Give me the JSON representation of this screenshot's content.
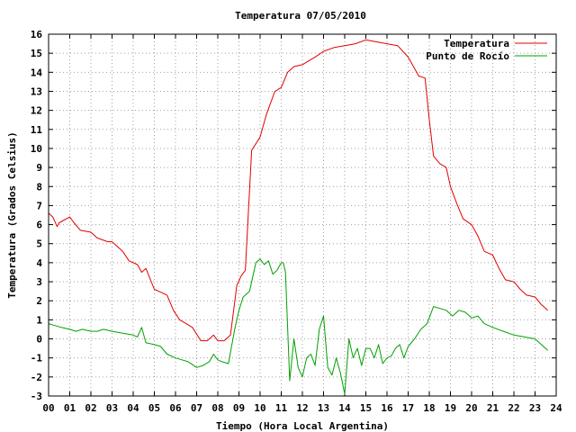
{
  "chart_data": {
    "type": "line",
    "title": "Temperatura 07/05/2010",
    "xlabel": "Tiempo (Hora Local Argentina)",
    "ylabel": "Temperatura (Grados Celsius)",
    "xlim": [
      0,
      24
    ],
    "ylim": [
      -3,
      16
    ],
    "xticks": [
      0,
      1,
      2,
      3,
      4,
      5,
      6,
      7,
      8,
      9,
      10,
      11,
      12,
      13,
      14,
      15,
      16,
      17,
      18,
      19,
      20,
      21,
      22,
      23,
      24
    ],
    "xtick_labels": [
      "00",
      "01",
      "02",
      "03",
      "04",
      "05",
      "06",
      "07",
      "08",
      "09",
      "10",
      "11",
      "12",
      "13",
      "14",
      "15",
      "16",
      "17",
      "18",
      "19",
      "20",
      "21",
      "22",
      "23",
      "24"
    ],
    "yticks": [
      -3,
      -2,
      -1,
      0,
      1,
      2,
      3,
      4,
      5,
      6,
      7,
      8,
      9,
      10,
      11,
      12,
      13,
      14,
      15,
      16
    ],
    "ytick_labels": [
      "-3",
      "-2",
      "-1",
      "0",
      "1",
      "2",
      "3",
      "4",
      "5",
      "6",
      "7",
      "8",
      "9",
      "10",
      "11",
      "12",
      "13",
      "14",
      "15",
      "16"
    ],
    "grid": true,
    "legend_position": "top-right",
    "series": [
      {
        "name": "Temperatura",
        "color": "#e00000",
        "x": [
          0.0,
          0.2,
          0.4,
          0.5,
          1.0,
          1.2,
          1.5,
          2.0,
          2.3,
          2.8,
          3.0,
          3.5,
          3.8,
          4.2,
          4.4,
          4.6,
          5.0,
          5.2,
          5.6,
          5.9,
          6.2,
          6.5,
          6.8,
          7.2,
          7.5,
          7.8,
          8.0,
          8.3,
          8.6,
          8.9,
          9.1,
          9.3,
          9.6,
          10.0,
          10.3,
          10.7,
          11.0,
          11.3,
          11.6,
          12.0,
          12.3,
          12.6,
          13.0,
          13.5,
          14.0,
          14.5,
          15.0,
          15.5,
          16.0,
          16.5,
          17.0,
          17.5,
          17.8,
          18.0,
          18.2,
          18.5,
          18.8,
          19.0,
          19.3,
          19.6,
          20.0,
          20.3,
          20.6,
          21.0,
          21.3,
          21.6,
          22.0,
          22.3,
          22.6,
          23.0,
          23.3,
          23.6
        ],
        "y": [
          6.6,
          6.4,
          5.9,
          6.1,
          6.4,
          6.1,
          5.7,
          5.6,
          5.3,
          5.1,
          5.1,
          4.6,
          4.1,
          3.9,
          3.5,
          3.7,
          2.6,
          2.5,
          2.3,
          1.5,
          1.0,
          0.8,
          0.6,
          -0.1,
          -0.1,
          0.2,
          -0.1,
          -0.1,
          0.2,
          2.8,
          3.3,
          3.6,
          9.9,
          10.6,
          11.8,
          13.0,
          13.2,
          14.0,
          14.3,
          14.4,
          14.6,
          14.8,
          15.1,
          15.3,
          15.4,
          15.5,
          15.7,
          15.6,
          15.5,
          15.4,
          14.8,
          13.8,
          13.7,
          11.5,
          9.6,
          9.2,
          9.0,
          8.0,
          7.1,
          6.3,
          6.0,
          5.4,
          4.6,
          4.4,
          3.7,
          3.1,
          3.0,
          2.6,
          2.3,
          2.2,
          1.8,
          1.5
        ]
      },
      {
        "name": "Punto de Rocío",
        "color": "#00a000",
        "x": [
          0.0,
          0.3,
          0.6,
          1.0,
          1.3,
          1.6,
          2.0,
          2.3,
          2.6,
          3.0,
          3.5,
          4.0,
          4.2,
          4.4,
          4.6,
          5.0,
          5.3,
          5.6,
          6.0,
          6.3,
          6.6,
          7.0,
          7.3,
          7.6,
          7.8,
          8.0,
          8.2,
          8.5,
          8.8,
          9.0,
          9.2,
          9.5,
          9.8,
          10.0,
          10.2,
          10.4,
          10.6,
          10.8,
          11.0,
          11.1,
          11.2,
          11.4,
          11.6,
          11.8,
          12.0,
          12.2,
          12.4,
          12.6,
          12.8,
          13.0,
          13.2,
          13.4,
          13.6,
          13.8,
          14.0,
          14.2,
          14.4,
          14.6,
          14.8,
          15.0,
          15.2,
          15.4,
          15.6,
          15.8,
          16.0,
          16.2,
          16.4,
          16.6,
          16.8,
          17.0,
          17.3,
          17.6,
          17.9,
          18.2,
          18.5,
          18.8,
          19.1,
          19.4,
          19.7,
          20.0,
          20.3,
          20.6,
          21.0,
          21.5,
          22.0,
          22.5,
          23.0,
          23.3,
          23.6
        ],
        "y": [
          0.8,
          0.7,
          0.6,
          0.5,
          0.4,
          0.5,
          0.4,
          0.4,
          0.5,
          0.4,
          0.3,
          0.2,
          0.1,
          0.6,
          -0.2,
          -0.3,
          -0.4,
          -0.8,
          -1.0,
          -1.1,
          -1.2,
          -1.5,
          -1.4,
          -1.2,
          -0.8,
          -1.1,
          -1.2,
          -1.3,
          0.5,
          1.5,
          2.2,
          2.5,
          4.0,
          4.2,
          3.9,
          4.1,
          3.4,
          3.6,
          4.0,
          4.0,
          3.5,
          -2.2,
          0.0,
          -1.5,
          -2.0,
          -1.0,
          -0.8,
          -1.4,
          0.5,
          1.2,
          -1.5,
          -1.9,
          -1.0,
          -1.8,
          -2.9,
          0.0,
          -1.0,
          -0.5,
          -1.4,
          -0.5,
          -0.5,
          -1.0,
          -0.3,
          -1.3,
          -1.0,
          -0.9,
          -0.5,
          -0.3,
          -1.0,
          -0.4,
          0.0,
          0.5,
          0.8,
          1.7,
          1.6,
          1.5,
          1.2,
          1.5,
          1.4,
          1.1,
          1.2,
          0.8,
          0.6,
          0.4,
          0.2,
          0.1,
          0.0,
          -0.3,
          -0.6
        ]
      }
    ]
  }
}
